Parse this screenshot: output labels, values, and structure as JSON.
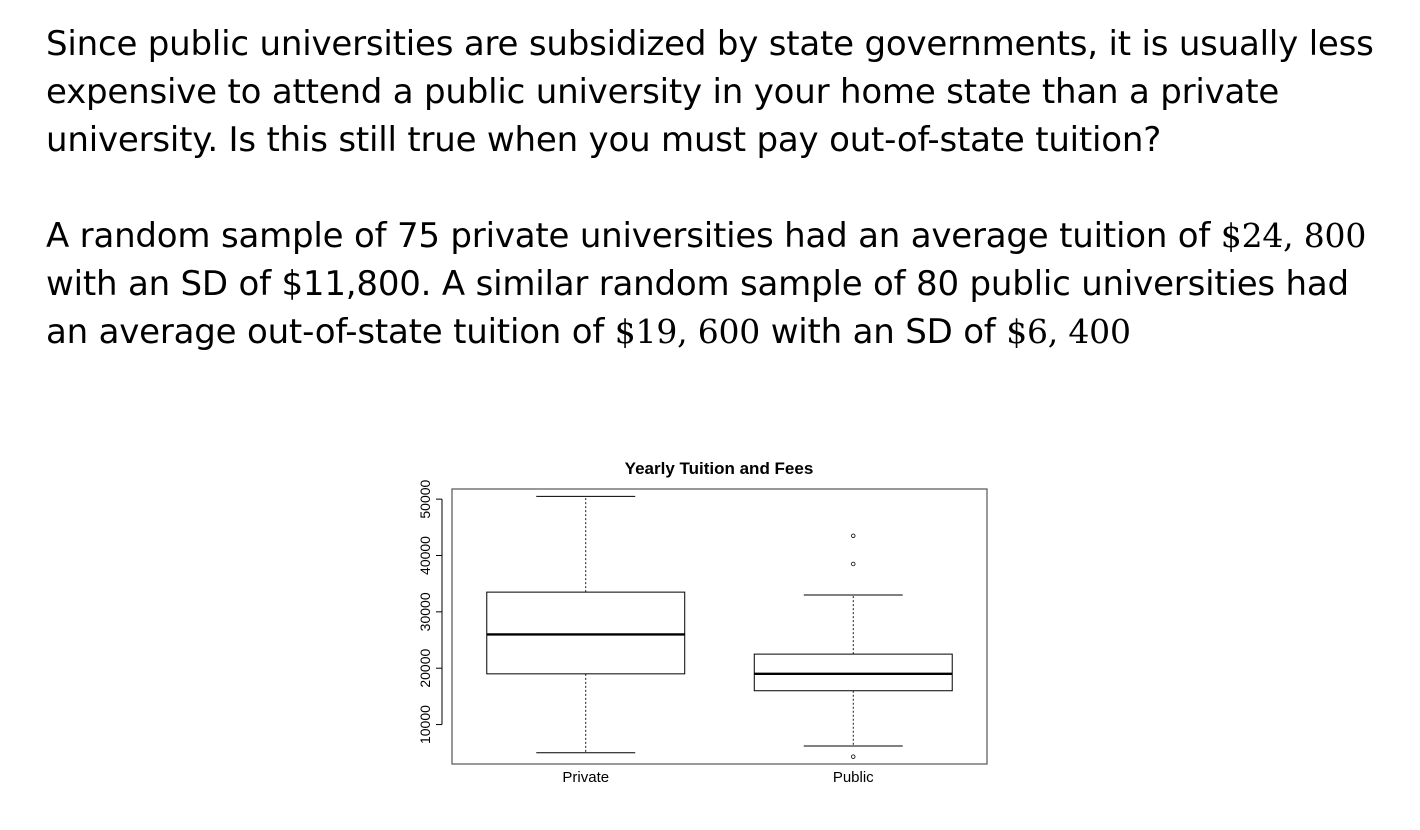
{
  "text": {
    "paragraph1": "Since public universities are subsidized by state governments, it is usually less expensive to attend a public university in your home state than a private university. Is this still true when you must pay out-of-state tuition?",
    "paragraph2": {
      "part1": "A random sample of 75 private universities had an average tuition of ",
      "value1": "$24, 800",
      "part2": " with an SD of $11,800. A similar random sample of 80 public universities had an average out-of-state tuition of ",
      "value2": "$19, 600",
      "part3": " with an SD of ",
      "value3": "$6, 400"
    }
  },
  "chart_data": {
    "type": "boxplot",
    "title": "Yearly Tuition and Fees",
    "xlabel": "",
    "ylabel": "",
    "categories": [
      "Private",
      "Public"
    ],
    "y_ticks": [
      10000,
      20000,
      30000,
      40000,
      50000
    ],
    "y_tick_labels": [
      "10000",
      "20000",
      "30000",
      "40000",
      "50000"
    ],
    "ylim": [
      3000,
      51800
    ],
    "grid": false,
    "boxes": [
      {
        "min": 5000,
        "q1": 19000,
        "median": 26000,
        "q3": 33500,
        "max": 50500,
        "outliers": []
      },
      {
        "min": 6200,
        "q1": 16000,
        "median": 19000,
        "q3": 22500,
        "max": 33000,
        "outliers": [
          43500,
          38500,
          4300
        ]
      }
    ]
  }
}
